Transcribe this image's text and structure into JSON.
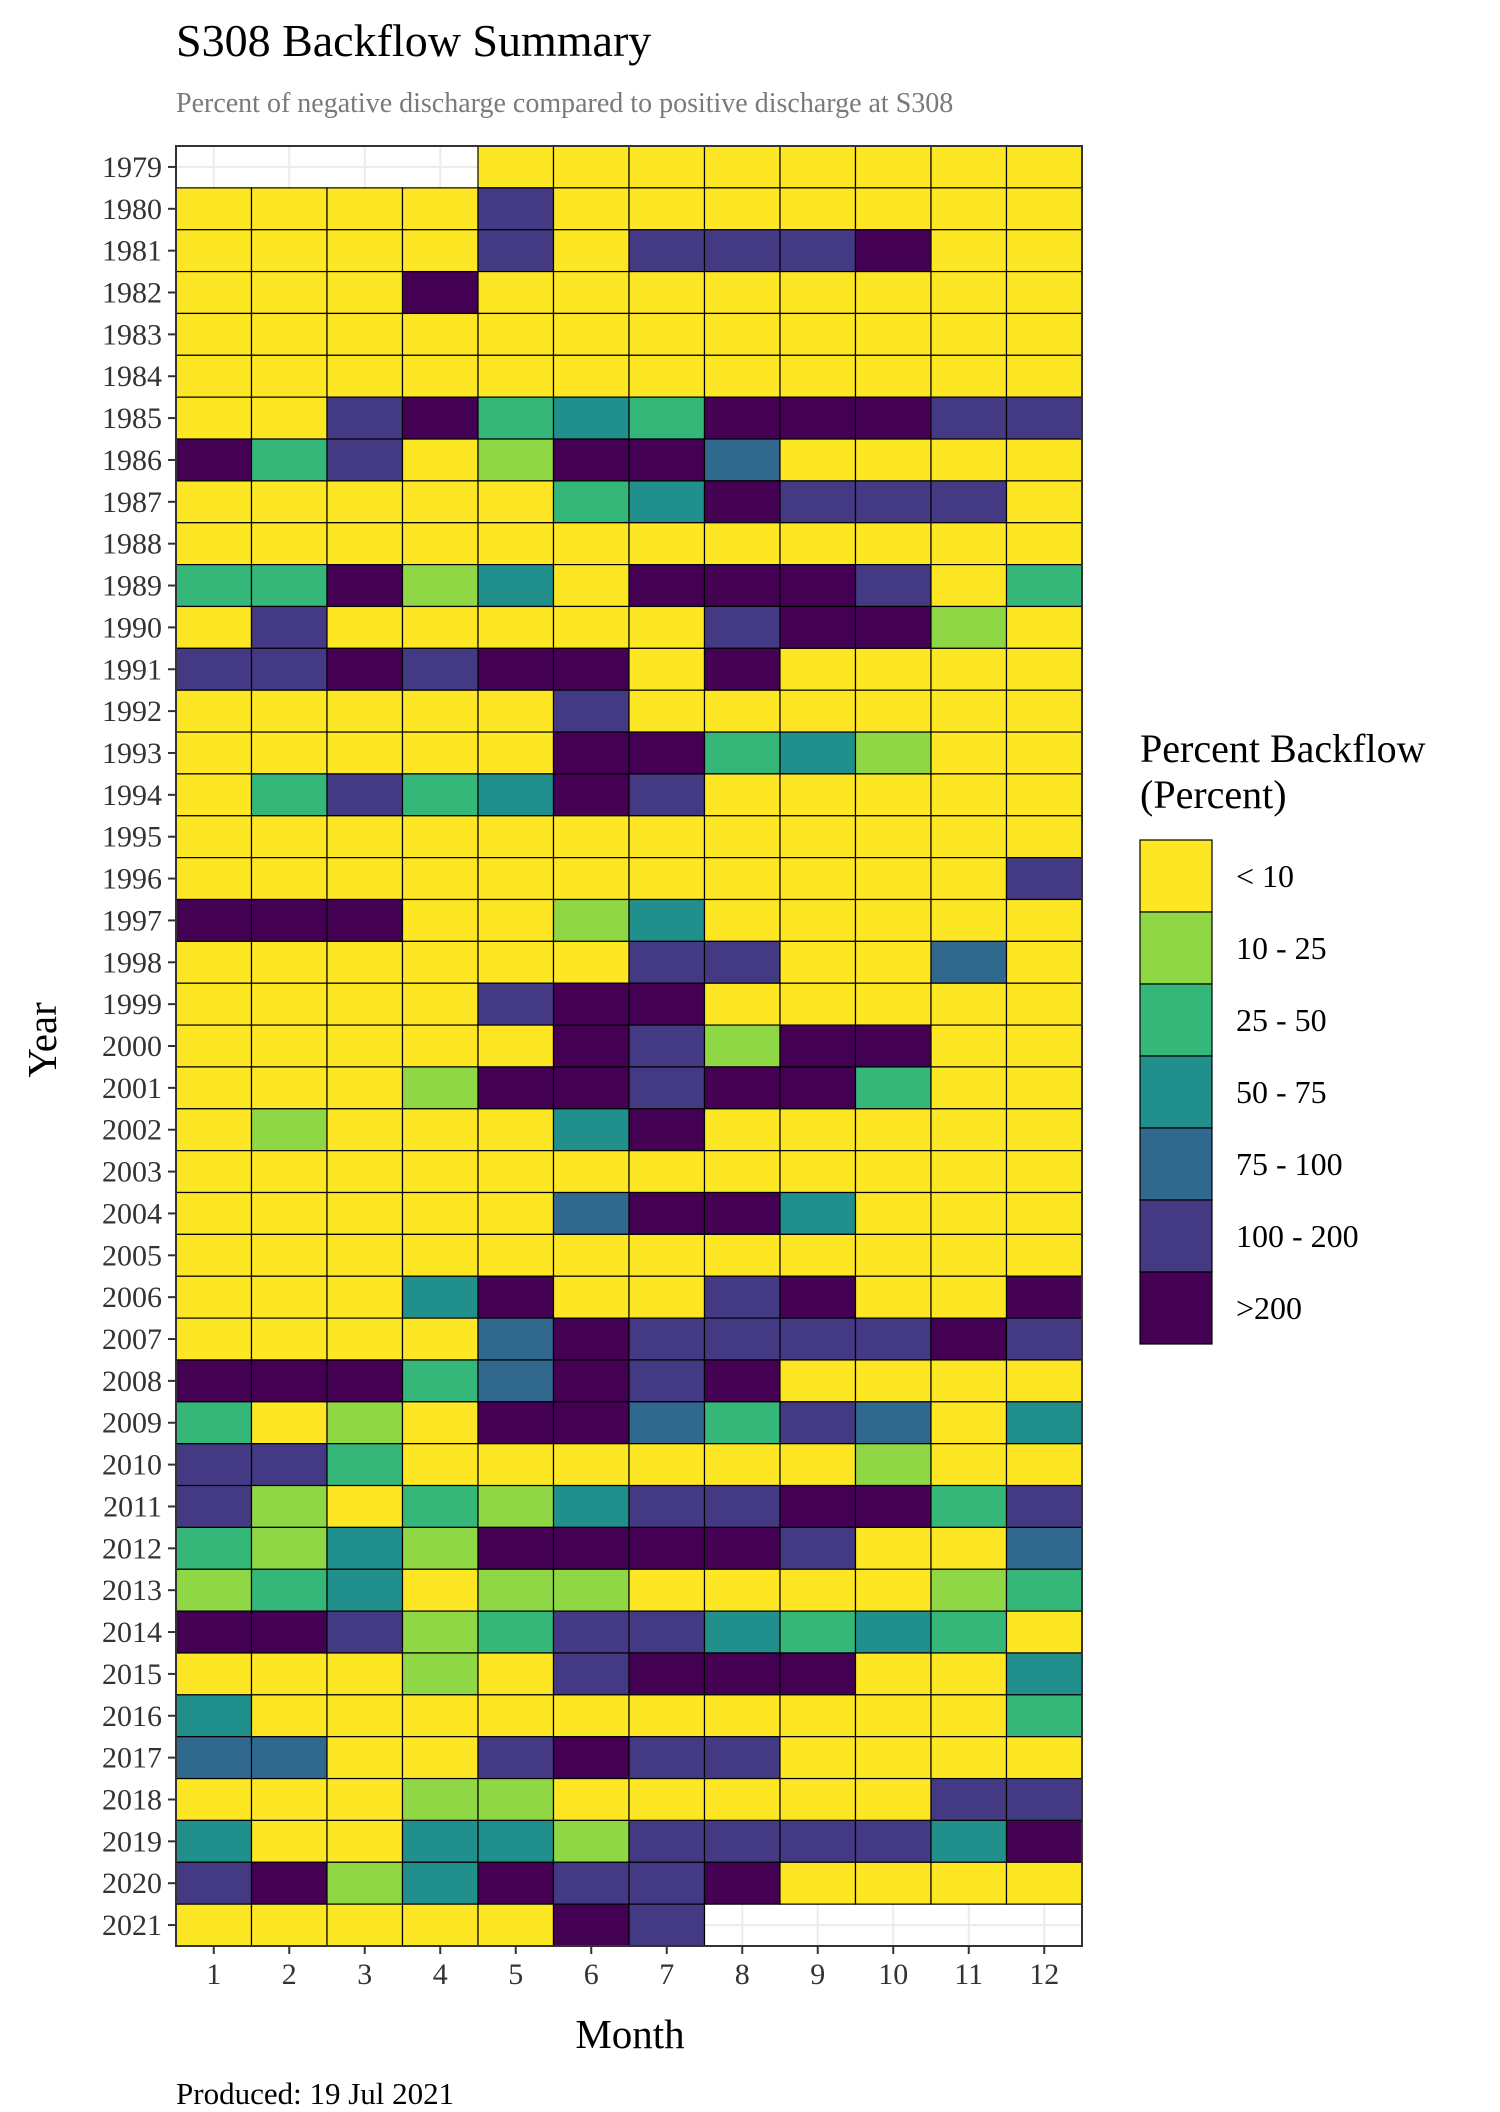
{
  "chart_data": {
    "type": "heatmap",
    "title": "S308 Backflow Summary",
    "subtitle": "Percent of negative discharge compared to positive discharge at S308",
    "xlabel": "Month",
    "ylabel": "Year",
    "footnote": "Produced: 19 Jul 2021",
    "x": [
      1,
      2,
      3,
      4,
      5,
      6,
      7,
      8,
      9,
      10,
      11,
      12
    ],
    "y": [
      1979,
      1980,
      1981,
      1982,
      1983,
      1984,
      1985,
      1986,
      1987,
      1988,
      1989,
      1990,
      1991,
      1992,
      1993,
      1994,
      1995,
      1996,
      1997,
      1998,
      1999,
      2000,
      2001,
      2002,
      2003,
      2004,
      2005,
      2006,
      2007,
      2008,
      2009,
      2010,
      2011,
      2012,
      2013,
      2014,
      2015,
      2016,
      2017,
      2018,
      2019,
      2020,
      2021
    ],
    "legend": {
      "title_lines": [
        "Percent Backflow",
        "(Percent)"
      ],
      "position": "right",
      "categories": [
        "< 10",
        "10 - 25",
        "25 - 50",
        "50 - 75",
        "75 - 100",
        "100 - 200",
        ">200"
      ],
      "colors": [
        "#FDE725",
        "#8FD744",
        "#35B779",
        "#21908C",
        "#31688E",
        "#443A83",
        "#440154"
      ]
    },
    "grid": true,
    "rows": [
      [
        null,
        null,
        null,
        null,
        0,
        0,
        0,
        0,
        0,
        0,
        0,
        0
      ],
      [
        0,
        0,
        0,
        0,
        5,
        0,
        0,
        0,
        0,
        0,
        0,
        0
      ],
      [
        0,
        0,
        0,
        0,
        5,
        0,
        5,
        5,
        5,
        6,
        0,
        0
      ],
      [
        0,
        0,
        0,
        6,
        0,
        0,
        0,
        0,
        0,
        0,
        0,
        0
      ],
      [
        0,
        0,
        0,
        0,
        0,
        0,
        0,
        0,
        0,
        0,
        0,
        0
      ],
      [
        0,
        0,
        0,
        0,
        0,
        0,
        0,
        0,
        0,
        0,
        0,
        0
      ],
      [
        0,
        0,
        5,
        6,
        2,
        3,
        2,
        6,
        6,
        6,
        5,
        5
      ],
      [
        6,
        2,
        5,
        0,
        1,
        6,
        6,
        4,
        0,
        0,
        0,
        0
      ],
      [
        0,
        0,
        0,
        0,
        0,
        2,
        3,
        6,
        5,
        5,
        5,
        0
      ],
      [
        0,
        0,
        0,
        0,
        0,
        0,
        0,
        0,
        0,
        0,
        0,
        0
      ],
      [
        2,
        2,
        6,
        1,
        3,
        0,
        6,
        6,
        6,
        5,
        0,
        2
      ],
      [
        0,
        5,
        0,
        0,
        0,
        0,
        0,
        5,
        6,
        6,
        1,
        0
      ],
      [
        5,
        5,
        6,
        5,
        6,
        6,
        0,
        6,
        0,
        0,
        0,
        0
      ],
      [
        0,
        0,
        0,
        0,
        0,
        5,
        0,
        0,
        0,
        0,
        0,
        0
      ],
      [
        0,
        0,
        0,
        0,
        0,
        6,
        6,
        2,
        3,
        1,
        0,
        0
      ],
      [
        0,
        2,
        5,
        2,
        3,
        6,
        5,
        0,
        0,
        0,
        0,
        0
      ],
      [
        0,
        0,
        0,
        0,
        0,
        0,
        0,
        0,
        0,
        0,
        0,
        0
      ],
      [
        0,
        0,
        0,
        0,
        0,
        0,
        0,
        0,
        0,
        0,
        0,
        5
      ],
      [
        6,
        6,
        6,
        0,
        0,
        1,
        3,
        0,
        0,
        0,
        0,
        0
      ],
      [
        0,
        0,
        0,
        0,
        0,
        0,
        5,
        5,
        0,
        0,
        4,
        0
      ],
      [
        0,
        0,
        0,
        0,
        5,
        6,
        6,
        0,
        0,
        0,
        0,
        0
      ],
      [
        0,
        0,
        0,
        0,
        0,
        6,
        5,
        1,
        6,
        6,
        0,
        0
      ],
      [
        0,
        0,
        0,
        1,
        6,
        6,
        5,
        6,
        6,
        2,
        0,
        0
      ],
      [
        0,
        1,
        0,
        0,
        0,
        3,
        6,
        0,
        0,
        0,
        0,
        0
      ],
      [
        0,
        0,
        0,
        0,
        0,
        0,
        0,
        0,
        0,
        0,
        0,
        0
      ],
      [
        0,
        0,
        0,
        0,
        0,
        4,
        6,
        6,
        3,
        0,
        0,
        0
      ],
      [
        0,
        0,
        0,
        0,
        0,
        0,
        0,
        0,
        0,
        0,
        0,
        0
      ],
      [
        0,
        0,
        0,
        3,
        6,
        0,
        0,
        5,
        6,
        0,
        0,
        6
      ],
      [
        0,
        0,
        0,
        0,
        4,
        6,
        5,
        5,
        5,
        5,
        6,
        5
      ],
      [
        6,
        6,
        6,
        2,
        4,
        6,
        5,
        6,
        0,
        0,
        0,
        0
      ],
      [
        2,
        0,
        1,
        0,
        6,
        6,
        4,
        2,
        5,
        4,
        0,
        3
      ],
      [
        5,
        5,
        2,
        0,
        0,
        0,
        0,
        0,
        0,
        1,
        0,
        0
      ],
      [
        5,
        1,
        0,
        2,
        1,
        3,
        5,
        5,
        6,
        6,
        2,
        5
      ],
      [
        2,
        1,
        3,
        1,
        6,
        6,
        6,
        6,
        5,
        0,
        0,
        4
      ],
      [
        1,
        2,
        3,
        0,
        1,
        1,
        0,
        0,
        0,
        0,
        1,
        2
      ],
      [
        6,
        6,
        5,
        1,
        2,
        5,
        5,
        3,
        2,
        3,
        2,
        0
      ],
      [
        0,
        0,
        0,
        1,
        0,
        5,
        6,
        6,
        6,
        0,
        0,
        3
      ],
      [
        3,
        0,
        0,
        0,
        0,
        0,
        0,
        0,
        0,
        0,
        0,
        2
      ],
      [
        4,
        4,
        0,
        0,
        5,
        6,
        5,
        5,
        0,
        0,
        0,
        0
      ],
      [
        0,
        0,
        0,
        1,
        1,
        0,
        0,
        0,
        0,
        0,
        5,
        5
      ],
      [
        3,
        0,
        0,
        3,
        3,
        1,
        5,
        5,
        5,
        5,
        3,
        6
      ],
      [
        5,
        6,
        1,
        3,
        6,
        5,
        5,
        6,
        0,
        0,
        0,
        0
      ],
      [
        0,
        0,
        0,
        0,
        0,
        6,
        5,
        null,
        null,
        null,
        null,
        null
      ]
    ]
  }
}
